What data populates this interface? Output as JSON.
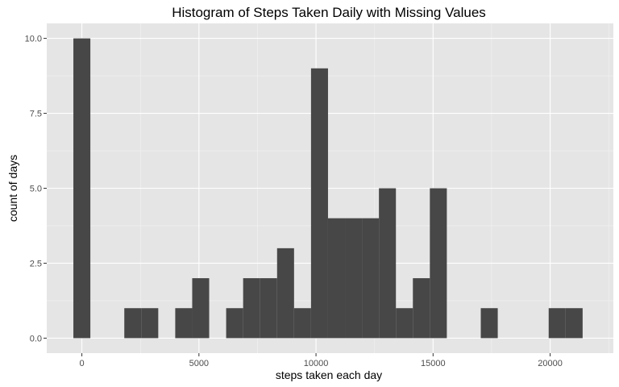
{
  "chart_data": {
    "type": "bar",
    "subtype": "histogram",
    "title": "Histogram of Steps Taken Daily with Missing Values",
    "xlabel": "steps taken each day",
    "ylabel": "count of days",
    "xlim": [
      -1500,
      22700
    ],
    "ylim": [
      -0.5,
      10.5
    ],
    "bin_width": 725,
    "x_ticks": [
      0,
      5000,
      10000,
      15000,
      20000
    ],
    "x_tick_labels": [
      "0",
      "5000",
      "10000",
      "15000",
      "20000"
    ],
    "y_ticks": [
      0,
      2.5,
      5,
      7.5,
      10
    ],
    "y_tick_labels": [
      "0.0",
      "2.5",
      "5.0",
      "7.5",
      "10.0"
    ],
    "grid": true,
    "bins": [
      {
        "x_start": -362.5,
        "count": 10
      },
      {
        "x_start": 1812.5,
        "count": 1
      },
      {
        "x_start": 2537.5,
        "count": 1
      },
      {
        "x_start": 3987.5,
        "count": 1
      },
      {
        "x_start": 4712.5,
        "count": 2
      },
      {
        "x_start": 6162.5,
        "count": 1
      },
      {
        "x_start": 6887.5,
        "count": 2
      },
      {
        "x_start": 7612.5,
        "count": 2
      },
      {
        "x_start": 8337.5,
        "count": 3
      },
      {
        "x_start": 9062.5,
        "count": 1
      },
      {
        "x_start": 9787.5,
        "count": 9
      },
      {
        "x_start": 10512.5,
        "count": 4
      },
      {
        "x_start": 11237.5,
        "count": 4
      },
      {
        "x_start": 11962.5,
        "count": 4
      },
      {
        "x_start": 12687.5,
        "count": 5
      },
      {
        "x_start": 13412.5,
        "count": 1
      },
      {
        "x_start": 14137.5,
        "count": 2
      },
      {
        "x_start": 14862.5,
        "count": 5
      },
      {
        "x_start": 17037.5,
        "count": 1
      },
      {
        "x_start": 19937.5,
        "count": 1
      },
      {
        "x_start": 20662.5,
        "count": 1
      }
    ],
    "colors": {
      "bar": "#474747",
      "panel": "#e5e5e5",
      "grid_major": "#ffffff",
      "grid_minor": "#f2f2f2",
      "tick": "#333333"
    }
  }
}
